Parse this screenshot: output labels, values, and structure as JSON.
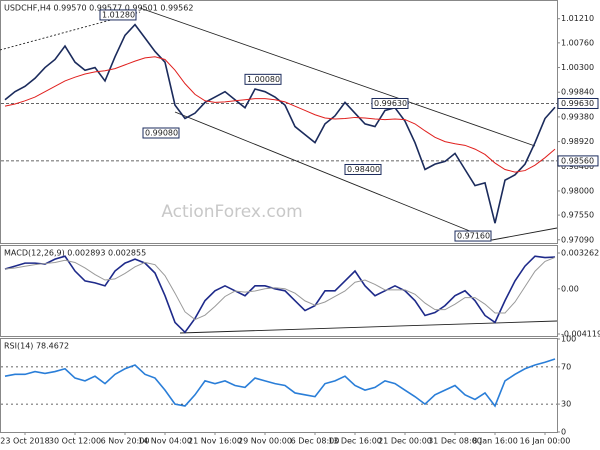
{
  "chart_data": [
    {
      "type": "line",
      "title": "USDCHF,H4  0.99570 0.99577 0.99501 0.99562",
      "watermark": "ActionForex.com",
      "ylim": [
        0.9703,
        1.0154
      ],
      "yticks": [
        {
          "value": 1.0121,
          "label": "1.01210"
        },
        {
          "value": 1.0076,
          "label": "1.00760"
        },
        {
          "value": 1.003,
          "label": "1.00300"
        },
        {
          "value": 0.9984,
          "label": "0.99840"
        },
        {
          "value": 0.9938,
          "label": "0.99380"
        },
        {
          "value": 0.9892,
          "label": "0.98920"
        },
        {
          "value": 0.9846,
          "label": "0.98460"
        },
        {
          "value": 0.98,
          "label": "0.98000"
        },
        {
          "value": 0.9755,
          "label": "0.97550"
        },
        {
          "value": 0.9709,
          "label": "0.97090"
        }
      ],
      "levels": [
        {
          "value": 0.9963,
          "label": "0.99630"
        },
        {
          "value": 0.9856,
          "label": "0.98560"
        }
      ],
      "annotations": [
        {
          "value": 1.0128,
          "label": "1.01280"
        },
        {
          "value": 1.0008,
          "label": "1.00080"
        },
        {
          "value": 0.9908,
          "label": "0.99080"
        },
        {
          "value": 0.9963,
          "label": "0.99630"
        },
        {
          "value": 0.984,
          "label": "0.98400"
        },
        {
          "value": 0.9716,
          "label": "0.97160"
        }
      ],
      "series": [
        {
          "name": "USDCHF",
          "color": "#1b2b5c",
          "values": [
            0.997,
            0.9985,
            0.9995,
            1.001,
            1.003,
            1.0045,
            1.007,
            1.004,
            1.0025,
            1.003,
            1.0005,
            1.005,
            1.009,
            1.011,
            1.0085,
            1.006,
            1.004,
            0.996,
            0.9935,
            0.9945,
            0.9965,
            0.9975,
            0.9985,
            0.997,
            0.9955,
            0.999,
            0.9985,
            0.9975,
            0.996,
            0.992,
            0.9905,
            0.989,
            0.9925,
            0.994,
            0.9965,
            0.9945,
            0.9925,
            0.992,
            0.995,
            0.9955,
            0.993,
            0.989,
            0.984,
            0.985,
            0.9855,
            0.987,
            0.984,
            0.981,
            0.9815,
            0.974,
            0.982,
            0.983,
            0.985,
            0.989,
            0.9935,
            0.9956
          ]
        },
        {
          "name": "MA",
          "color": "#e0201e",
          "values": [
            0.9958,
            0.9962,
            0.9968,
            0.9975,
            0.9985,
            0.9995,
            1.0005,
            1.0012,
            1.0018,
            1.0022,
            1.0024,
            1.0028,
            1.0035,
            1.0042,
            1.0048,
            1.005,
            1.0045,
            1.0025,
            1.0,
            0.998,
            0.9968,
            0.9965,
            0.9966,
            0.9968,
            0.997,
            0.9972,
            0.9972,
            0.997,
            0.9966,
            0.9958,
            0.995,
            0.9942,
            0.9936,
            0.9934,
            0.9935,
            0.9937,
            0.9936,
            0.9934,
            0.9933,
            0.9934,
            0.9933,
            0.9925,
            0.9912,
            0.99,
            0.9892,
            0.9888,
            0.9885,
            0.9878,
            0.9868,
            0.9852,
            0.984,
            0.9835,
            0.9838,
            0.9848,
            0.9862,
            0.9878
          ]
        }
      ]
    },
    {
      "type": "line",
      "title": "MACD(12,26,9) 0.002893 0.002855",
      "ylim": [
        -0.0043,
        0.0039
      ],
      "yticks": [
        0.003262,
        {
          "value": 0,
          "label": "0.00"
        },
        -0.004119
      ],
      "series": [
        {
          "name": "MACD",
          "color": "#1e2a8a",
          "values": [
            0.0018,
            0.00207,
            0.00234,
            0.00234,
            0.00225,
            0.0027,
            0.00297,
            0.00162,
            0.00072,
            0.00054,
            0.00027,
            0.00162,
            0.00234,
            0.0027,
            0.00234,
            0.00144,
            -0.00063,
            -0.00306,
            -0.00396,
            -0.0027,
            -0.00108,
            -0.00018,
            0.00027,
            -0.00018,
            -0.00063,
            0.00027,
            0.00027,
            0,
            -0.00018,
            -0.00108,
            -0.00198,
            -0.00153,
            -0.00018,
            -0.00018,
            0.00072,
            0.00162,
            0.00027,
            -0.00063,
            -0.00018,
            0.00027,
            -0.00018,
            -0.00108,
            -0.00243,
            -0.00216,
            -0.00153,
            -0.00063,
            -0.00018,
            -0.00108,
            -0.00243,
            -0.00306,
            -0.00108,
            0.00072,
            0.00207,
            0.00297,
            0.00285,
            0.002893
          ]
        },
        {
          "name": "Signal",
          "color": "#9a9a9a",
          "values": [
            0.0018,
            0.0019,
            0.00205,
            0.0022,
            0.0023,
            0.0024,
            0.0026,
            0.0024,
            0.0019,
            0.0013,
            0.0008,
            0.0009,
            0.0014,
            0.002,
            0.0024,
            0.0022,
            0.0012,
            -0.0004,
            -0.0021,
            -0.0028,
            -0.0024,
            -0.0016,
            -0.0007,
            -0.0002,
            -0.0003,
            -0.0002,
            0,
            0.0001,
            0,
            -0.0004,
            -0.0011,
            -0.0015,
            -0.0012,
            -0.0007,
            -0.0002,
            0.0006,
            0.0008,
            0.0004,
            -0.0001,
            -0.0001,
            -0.0001,
            -0.0005,
            -0.0013,
            -0.0019,
            -0.0019,
            -0.0014,
            -0.0008,
            -0.0008,
            -0.0014,
            -0.0022,
            -0.0022,
            -0.0012,
            0.0002,
            0.0016,
            0.0025,
            0.002855
          ]
        }
      ]
    },
    {
      "type": "line",
      "title": "RSI(14) 78.4672",
      "ylim": [
        0,
        100
      ],
      "yticks": [
        100,
        70,
        30,
        0
      ],
      "levels": [
        70,
        30
      ],
      "categories": [
        null,
        null,
        "23 Oct 2018",
        null,
        null,
        null,
        null,
        "30 Oct 12:00",
        null,
        null,
        null,
        null,
        "6 Nov 20:00",
        null,
        null,
        null,
        "14 Nov 04:00",
        null,
        null,
        null,
        null,
        "21 Nov 16:00",
        null,
        null,
        null,
        null,
        "29 Nov 00:00",
        null,
        null,
        null,
        null,
        "6 Dec 08:00",
        null,
        null,
        null,
        "13 Dec 16:00",
        null,
        null,
        null,
        null,
        "21 Dec 00:00",
        null,
        null,
        null,
        null,
        "31 Dec 08:00",
        null,
        null,
        null,
        "8 Jan 16:00",
        null,
        null,
        null,
        null,
        "16 Jan 00:00",
        null
      ],
      "series": [
        {
          "name": "RSI",
          "color": "#2a7ed8",
          "values": [
            60,
            62,
            62,
            65,
            63,
            65,
            68,
            58,
            55,
            60,
            52,
            62,
            68,
            72,
            62,
            58,
            45,
            30,
            28,
            40,
            55,
            52,
            55,
            50,
            48,
            58,
            55,
            52,
            50,
            42,
            40,
            38,
            52,
            55,
            60,
            50,
            45,
            48,
            55,
            52,
            45,
            38,
            30,
            40,
            45,
            50,
            40,
            35,
            42,
            28,
            55,
            62,
            68,
            72,
            75,
            78.4672
          ]
        }
      ]
    }
  ]
}
